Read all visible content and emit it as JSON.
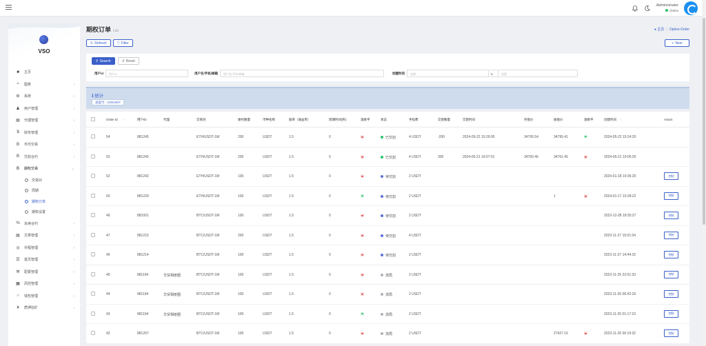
{
  "topbar": {
    "menu_icon": "hamburger-icon",
    "notify_icon": "bell-icon",
    "theme_icon": "moon-icon",
    "user_name": "Administrator",
    "user_status": "Online"
  },
  "brand": {
    "name": "VSO"
  },
  "sidebar": {
    "items": [
      {
        "icon": "home-icon",
        "label": "主页",
        "arrow": false
      },
      {
        "icon": "chart-icon",
        "label": "图表",
        "arrow": true
      },
      {
        "icon": "gear-icon",
        "label": "系统",
        "arrow": true
      },
      {
        "icon": "user-icon",
        "label": "用户管理",
        "arrow": true
      },
      {
        "icon": "card-icon",
        "label": "代理管理",
        "arrow": true
      },
      {
        "icon": "dollar-icon",
        "label": "财务管理",
        "arrow": true
      },
      {
        "icon": "bitcoin-icon",
        "label": "币币交易",
        "arrow": true
      },
      {
        "icon": "bitcoin-icon",
        "label": "交割合约",
        "arrow": true
      },
      {
        "icon": "bitcoin-icon",
        "label": "期权交易",
        "arrow": true,
        "open": true,
        "children": [
          {
            "label": "交易对",
            "active": false
          },
          {
            "label": "周期",
            "active": false
          },
          {
            "label": "期权订单",
            "active": true
          },
          {
            "label": "期权设置",
            "active": false
          }
        ]
      },
      {
        "icon": "percent-icon",
        "label": "永续合约",
        "arrow": true
      },
      {
        "icon": "file-icon",
        "label": "文章管理",
        "arrow": true
      },
      {
        "icon": "globe-icon",
        "label": "币程管理",
        "arrow": true
      },
      {
        "icon": "list-icon",
        "label": "首页管理",
        "arrow": true
      },
      {
        "icon": "wrench-icon",
        "label": "配置管理",
        "arrow": true
      },
      {
        "icon": "table-icon",
        "label": "风控管理",
        "arrow": true
      },
      {
        "icon": "circle-icon",
        "label": "钱包管理",
        "arrow": true
      },
      {
        "icon": "yen-icon",
        "label": "质押挖矿",
        "arrow": true
      }
    ]
  },
  "page": {
    "title": "期权订单",
    "subtitle": "List",
    "breadcrumb_home": "主页",
    "breadcrumb_current": "Option-Order",
    "refresh_label": "Refresh",
    "filter_label": "Filter",
    "new_label": "New"
  },
  "search": {
    "search_label": "Search",
    "reset_label": "Reset",
    "fields": [
      {
        "label": "用户id",
        "placeholder": "用户id"
      },
      {
        "label": "用户名/手机/邮箱",
        "placeholder": "用户名/手机/邮箱"
      },
      {
        "label": "创建时间",
        "placeholder": "创建",
        "to": "To",
        "placeholder2": "创建"
      }
    ]
  },
  "stats": {
    "title": "统计",
    "summary": "总盈亏: -100USDT"
  },
  "table": {
    "headers": [
      "Order Id",
      "用户ID",
      "代理",
      "交易对",
      "委托数量",
      "币种名称",
      "赔率（收益率）",
      "周期时间(秒)",
      "涨跌平",
      "状态",
      "手续费",
      "交割数量",
      "交割时间",
      "开盘价",
      "收盘价",
      "涨跌平",
      "创建时间",
      "Action"
    ],
    "action_label": "控制",
    "rows": [
      {
        "id": "54",
        "uid": "881245",
        "agent": "",
        "pair": "ETH/USDT-1M",
        "qty": "200",
        "coin": "USDT",
        "rate": "1.5",
        "period": "0",
        "dir": "down",
        "status": "已交割",
        "status_color": "#2bc26d",
        "fee": "4 USDT",
        "delivery_qty": "-200",
        "delivery_time": "2024-05-22 15:26:00",
        "open": "34795.54",
        "close": "34795.41",
        "result": "up",
        "created": "2024-05-22 15:24:20",
        "action": false
      },
      {
        "id": "53",
        "uid": "881245",
        "agent": "",
        "pair": "ETH/USDT-1M",
        "qty": "200",
        "coin": "USDT",
        "rate": "1.5",
        "period": "0",
        "dir": "down",
        "status": "已交割",
        "status_color": "#2bc26d",
        "fee": "4 USDT",
        "delivery_qty": "300",
        "delivery_time": "2024-05-21 19:07:01",
        "open": "34760.46",
        "close": "34761.45",
        "result": "down",
        "created": "2024-05-21 19:05:20",
        "action": false
      },
      {
        "id": "52",
        "uid": "881242",
        "agent": "",
        "pair": "ETH/USDT-1M",
        "qty": "100",
        "coin": "USDT",
        "rate": "1.5",
        "period": "0",
        "dir": "down",
        "status": "待交割",
        "status_color": "#5b6fd6",
        "fee": "2 USDT",
        "delivery_qty": "",
        "delivery_time": "",
        "open": "",
        "close": "",
        "result": "",
        "created": "2024-01-18 19:36:20",
        "action": true
      },
      {
        "id": "50",
        "uid": "881229",
        "agent": "",
        "pair": "ETH/USDT-1M",
        "qty": "100",
        "coin": "USDT",
        "rate": "1.5",
        "period": "0",
        "dir": "up",
        "status": "待交割",
        "status_color": "#5b6fd6",
        "fee": "2 USDT",
        "delivery_qty": "",
        "delivery_time": "",
        "open": "",
        "close": "1",
        "result": "down",
        "created": "2024-01-17 15:28:22",
        "action": true
      },
      {
        "id": "49",
        "uid": "881001",
        "agent": "",
        "pair": "BTC/USDT-1M",
        "qty": "100",
        "coin": "USDT",
        "rate": "1.5",
        "period": "0",
        "dir": "down",
        "status": "待交割",
        "status_color": "#5b6fd6",
        "fee": "2 USDT",
        "delivery_qty": "",
        "delivery_time": "",
        "open": "",
        "close": "",
        "result": "",
        "created": "2023-12-28 18:35:27",
        "action": true
      },
      {
        "id": "47",
        "uid": "881215",
        "agent": "",
        "pair": "BTC/USDT-1M",
        "qty": "200",
        "coin": "USDT",
        "rate": "1.5",
        "period": "0",
        "dir": "down",
        "status": "待交割",
        "status_color": "#5b6fd6",
        "fee": "4 USDT",
        "delivery_qty": "",
        "delivery_time": "",
        "open": "",
        "close": "",
        "result": "",
        "created": "2023-11-27 15:01:04",
        "action": true
      },
      {
        "id": "46",
        "uid": "881214",
        "agent": "",
        "pair": "BTC/USDT-1M",
        "qty": "100",
        "coin": "USDT",
        "rate": "1.5",
        "period": "0",
        "dir": "down",
        "status": "待交割",
        "status_color": "#5b6fd6",
        "fee": "2 USDT",
        "delivery_qty": "",
        "delivery_time": "",
        "open": "",
        "close": "",
        "result": "",
        "created": "2023-11-27 14:44:15",
        "action": true
      },
      {
        "id": "45",
        "uid": "881194",
        "agent": "华贸相册圈",
        "pair": "BTC/USDT-1M",
        "qty": "100",
        "coin": "USDT",
        "rate": "1.5",
        "period": "0",
        "dir": "down",
        "status": "流局",
        "status_color": "#aab0b8",
        "fee": "2 USDT",
        "delivery_qty": "",
        "delivery_time": "",
        "open": "",
        "close": "",
        "result": "",
        "created": "2023-11-25 22:01:33",
        "action": true
      },
      {
        "id": "44",
        "uid": "881194",
        "agent": "华贸相册圈",
        "pair": "BTC/USDT-1M",
        "qty": "100",
        "coin": "USDT",
        "rate": "1.5",
        "period": "0",
        "dir": "down",
        "status": "流局",
        "status_color": "#aab0b8",
        "fee": "2 USDT",
        "delivery_qty": "",
        "delivery_time": "",
        "open": "",
        "close": "",
        "result": "",
        "created": "2023-11-20 06:42:18",
        "action": true
      },
      {
        "id": "43",
        "uid": "881194",
        "agent": "华贸相册圈",
        "pair": "BTC/USDT-1M",
        "qty": "100",
        "coin": "USDT",
        "rate": "1.5",
        "period": "0",
        "dir": "up",
        "status": "流局",
        "status_color": "#aab0b8",
        "fee": "2 USDT",
        "delivery_qty": "",
        "delivery_time": "",
        "open": "",
        "close": "",
        "result": "",
        "created": "2023-11-20 01:17:10",
        "action": true
      },
      {
        "id": "42",
        "uid": "881207",
        "agent": "",
        "pair": "BTC/USDT-1M",
        "qty": "100",
        "coin": "USDT",
        "rate": "1.5",
        "period": "0",
        "dir": "down",
        "status": "流局",
        "status_color": "#aab0b8",
        "fee": "2 USDT",
        "delivery_qty": "",
        "delivery_time": "",
        "open": "",
        "close": "27427.16",
        "result": "down",
        "created": "2023-11-20 00:19:32",
        "action": true
      }
    ]
  }
}
